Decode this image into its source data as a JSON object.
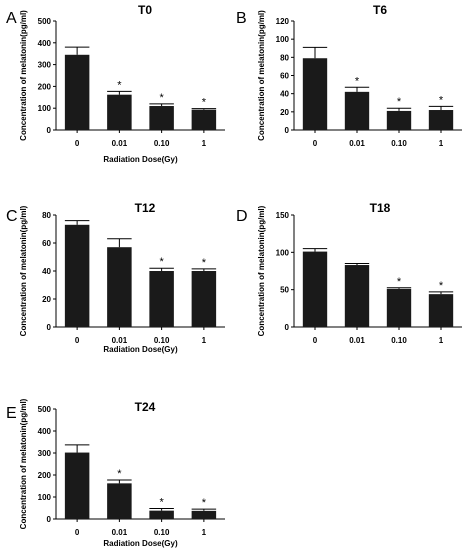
{
  "chart_data": [
    {
      "type": "bar",
      "panel": "A",
      "title": "T0",
      "xlabel": "Radiation Dose(Gy)",
      "ylabel": "Concentration of melatonin(pg/ml)",
      "categories": [
        "0",
        "0.01",
        "0.10",
        "1"
      ],
      "values": [
        345,
        162,
        110,
        93
      ],
      "errors": [
        35,
        15,
        10,
        5
      ],
      "significance": [
        "",
        "*",
        "*",
        "*"
      ],
      "ylim": [
        0,
        500
      ],
      "yticks": [
        0,
        100,
        200,
        300,
        400,
        500
      ]
    },
    {
      "type": "bar",
      "panel": "B",
      "title": "T6",
      "xlabel": "",
      "ylabel": "Concentration of melatonin(pg/ml)",
      "categories": [
        "0",
        "0.01",
        "0.10",
        "1"
      ],
      "values": [
        79,
        42,
        21,
        22
      ],
      "errors": [
        12,
        5,
        3,
        4
      ],
      "significance": [
        "",
        "*",
        "*",
        "*"
      ],
      "ylim": [
        0,
        120
      ],
      "yticks": [
        0,
        20,
        40,
        60,
        80,
        100,
        120
      ]
    },
    {
      "type": "bar",
      "panel": "C",
      "title": "T12",
      "xlabel": "Radiation Dose(Gy)",
      "ylabel": "Concentration of melatonin(pg/ml)",
      "categories": [
        "0",
        "0.01",
        "0.10",
        "1"
      ],
      "values": [
        73,
        57,
        40,
        40
      ],
      "errors": [
        3,
        6,
        2,
        1.5
      ],
      "significance": [
        "",
        "",
        "*",
        "*"
      ],
      "ylim": [
        0,
        80
      ],
      "yticks": [
        0,
        20,
        40,
        60,
        80
      ]
    },
    {
      "type": "bar",
      "panel": "D",
      "title": "T18",
      "xlabel": "",
      "ylabel": "Concentration of melatonin(pg/ml)",
      "categories": [
        "0",
        "0.01",
        "0.10",
        "1"
      ],
      "values": [
        101,
        83,
        51,
        44
      ],
      "errors": [
        4,
        2,
        1.5,
        3
      ],
      "significance": [
        "",
        "",
        "*",
        "*"
      ],
      "ylim": [
        0,
        150
      ],
      "yticks": [
        0,
        50,
        100,
        150
      ]
    },
    {
      "type": "bar",
      "panel": "E",
      "title": "T24",
      "xlabel": "Radiation Dose(Gy)",
      "ylabel": "Concentration of melatonin(pg/ml)",
      "categories": [
        "0",
        "0.01",
        "0.10",
        "1"
      ],
      "values": [
        302,
        162,
        38,
        37
      ],
      "errors": [
        35,
        15,
        10,
        8
      ],
      "significance": [
        "",
        "*",
        "*",
        "*"
      ],
      "ylim": [
        0,
        500
      ],
      "yticks": [
        0,
        100,
        200,
        300,
        400,
        500
      ]
    }
  ]
}
